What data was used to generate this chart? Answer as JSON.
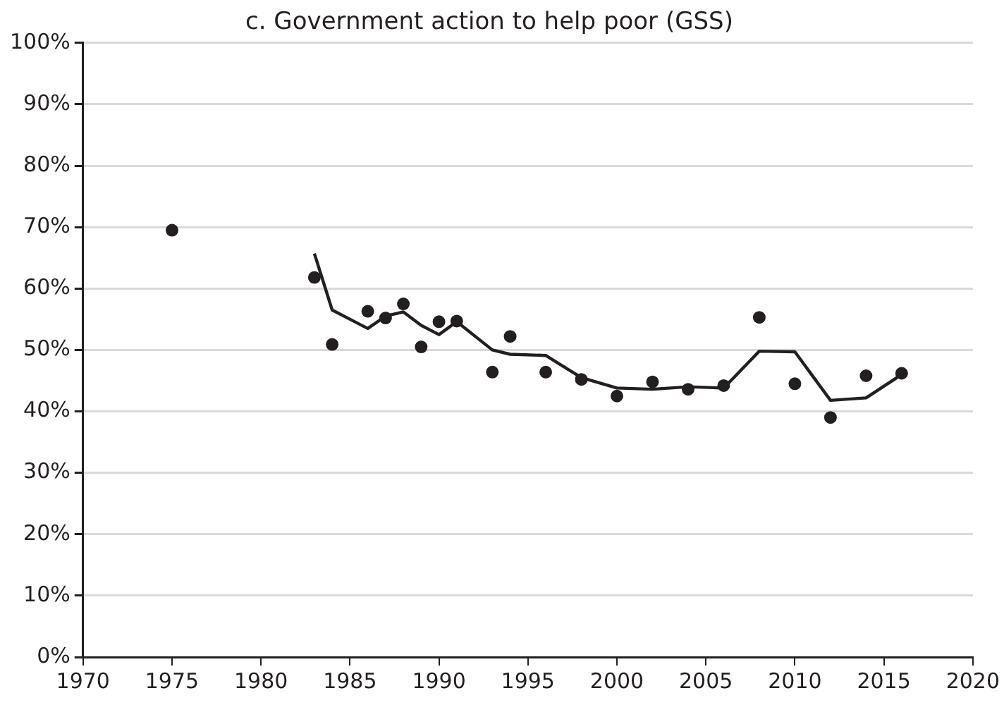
{
  "chart_data": {
    "type": "scatter",
    "title": "c. Government action to help poor (GSS)",
    "series": [
      {
        "color": "#231f20",
        "marker": "circle",
        "x": [
          1975,
          1983,
          1984,
          1986,
          1987,
          1988,
          1989,
          1990,
          1991,
          1993,
          1994,
          1996,
          1998,
          2000,
          2002,
          2004,
          2006,
          2008,
          2010,
          2012,
          2014,
          2016
        ],
        "values": [
          69.5,
          61.8,
          50.9,
          56.3,
          55.2,
          57.5,
          50.5,
          54.6,
          54.7,
          46.4,
          52.2,
          46.4,
          45.2,
          42.5,
          44.8,
          43.6,
          44.2,
          55.3,
          44.5,
          39.0,
          45.8,
          46.2
        ]
      },
      {
        "type": "line",
        "color": "#231f20",
        "marker": "none",
        "x": [
          1983,
          1984,
          1986,
          1987,
          1988,
          1989,
          1990,
          1991,
          1993,
          1994,
          1996,
          1998,
          2000,
          2002,
          2004,
          2006,
          2008,
          2010,
          2012,
          2014,
          2016
        ],
        "values": [
          65.7,
          56.5,
          53.5,
          55.5,
          56.2,
          54.0,
          52.5,
          54.6,
          50.0,
          49.3,
          49.1,
          45.5,
          43.8,
          43.6,
          44.0,
          43.8,
          49.8,
          49.7,
          41.8,
          42.2,
          46.0
        ]
      }
    ],
    "xlim": [
      1970,
      2020
    ],
    "xticks": [
      1970,
      1975,
      1980,
      1985,
      1990,
      1995,
      2000,
      2005,
      2010,
      2015,
      2020
    ],
    "ylim": [
      0,
      100
    ],
    "yticks": [
      {
        "value": 0,
        "label": "0%"
      },
      {
        "value": 10,
        "label": "10%"
      },
      {
        "value": 20,
        "label": "20%"
      },
      {
        "value": 30,
        "label": "30%"
      },
      {
        "value": 40,
        "label": "40%"
      },
      {
        "value": 50,
        "label": "50%"
      },
      {
        "value": 60,
        "label": "60%"
      },
      {
        "value": 70,
        "label": "70%"
      },
      {
        "value": 80,
        "label": "80%"
      },
      {
        "value": 90,
        "label": "90%"
      },
      {
        "value": 100,
        "label": "100%"
      }
    ],
    "grid": "y",
    "legend": false
  }
}
